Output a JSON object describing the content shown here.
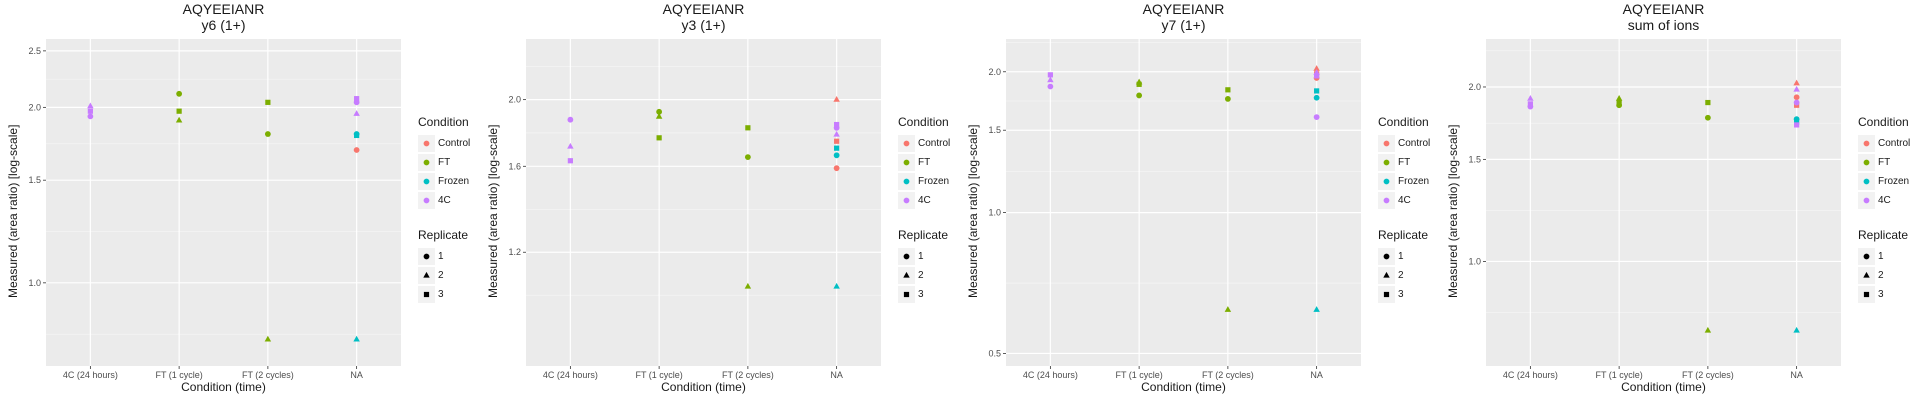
{
  "chart_data": [
    {
      "type": "scatter",
      "title": "AQYEEIANR",
      "subtitle": "y6 (1+)",
      "xlabel": "Condition (time)",
      "ylabel": "Measured (area ratio) [log-scale]",
      "yscale": "log",
      "ylim": [
        0.72,
        2.62
      ],
      "yticks": [
        1.0,
        1.5,
        2.0,
        2.5
      ],
      "yticklabels": [
        "1.0",
        "1.5",
        "2.0",
        "2.5"
      ],
      "categories": [
        "4C (24 hours)",
        "FT (1 cycle)",
        "FT (2 cycles)",
        "NA"
      ],
      "points": [
        {
          "x": "4C (24 hours)",
          "y": 1.93,
          "condition": "4C",
          "replicate": "1"
        },
        {
          "x": "4C (24 hours)",
          "y": 2.01,
          "condition": "4C",
          "replicate": "2"
        },
        {
          "x": "4C (24 hours)",
          "y": 1.97,
          "condition": "4C",
          "replicate": "3"
        },
        {
          "x": "FT (1 cycle)",
          "y": 2.11,
          "condition": "FT",
          "replicate": "1"
        },
        {
          "x": "FT (1 cycle)",
          "y": 1.9,
          "condition": "FT",
          "replicate": "2"
        },
        {
          "x": "FT (1 cycle)",
          "y": 1.97,
          "condition": "FT",
          "replicate": "3"
        },
        {
          "x": "FT (2 cycles)",
          "y": 1.8,
          "condition": "FT",
          "replicate": "1"
        },
        {
          "x": "FT (2 cycles)",
          "y": 0.8,
          "condition": "FT",
          "replicate": "2"
        },
        {
          "x": "FT (2 cycles)",
          "y": 2.04,
          "condition": "FT",
          "replicate": "3"
        },
        {
          "x": "NA",
          "y": 1.69,
          "condition": "Control",
          "replicate": "1"
        },
        {
          "x": "NA",
          "y": 1.8,
          "condition": "Frozen",
          "replicate": "1"
        },
        {
          "x": "NA",
          "y": 1.79,
          "condition": "Frozen",
          "replicate": "3"
        },
        {
          "x": "NA",
          "y": 0.8,
          "condition": "Frozen",
          "replicate": "2"
        },
        {
          "x": "NA",
          "y": 2.04,
          "condition": "4C",
          "replicate": "1"
        },
        {
          "x": "NA",
          "y": 2.07,
          "condition": "4C",
          "replicate": "3"
        },
        {
          "x": "NA",
          "y": 1.95,
          "condition": "4C",
          "replicate": "2"
        }
      ]
    },
    {
      "type": "scatter",
      "title": "AQYEEIANR",
      "subtitle": "y3 (1+)",
      "xlabel": "Condition (time)",
      "ylabel": "Measured (area ratio) [log-scale]",
      "yscale": "log",
      "ylim": [
        0.82,
        2.45
      ],
      "yticks": [
        1.2,
        1.6,
        2.0
      ],
      "yticklabels": [
        "1.2",
        "1.6",
        "2.0"
      ],
      "categories": [
        "4C (24 hours)",
        "FT (1 cycle)",
        "FT (2 cycles)",
        "NA"
      ],
      "points": [
        {
          "x": "4C (24 hours)",
          "y": 1.87,
          "condition": "4C",
          "replicate": "1"
        },
        {
          "x": "4C (24 hours)",
          "y": 1.71,
          "condition": "4C",
          "replicate": "2"
        },
        {
          "x": "4C (24 hours)",
          "y": 1.63,
          "condition": "4C",
          "replicate": "3"
        },
        {
          "x": "FT (1 cycle)",
          "y": 1.92,
          "condition": "FT",
          "replicate": "1"
        },
        {
          "x": "FT (1 cycle)",
          "y": 1.89,
          "condition": "FT",
          "replicate": "2"
        },
        {
          "x": "FT (1 cycle)",
          "y": 1.76,
          "condition": "FT",
          "replicate": "3"
        },
        {
          "x": "FT (2 cycles)",
          "y": 1.65,
          "condition": "FT",
          "replicate": "1"
        },
        {
          "x": "FT (2 cycles)",
          "y": 1.07,
          "condition": "FT",
          "replicate": "2"
        },
        {
          "x": "FT (2 cycles)",
          "y": 1.82,
          "condition": "FT",
          "replicate": "3"
        },
        {
          "x": "NA",
          "y": 1.59,
          "condition": "Control",
          "replicate": "1"
        },
        {
          "x": "NA",
          "y": 2.0,
          "condition": "Control",
          "replicate": "2"
        },
        {
          "x": "NA",
          "y": 1.74,
          "condition": "Control",
          "replicate": "3"
        },
        {
          "x": "NA",
          "y": 1.66,
          "condition": "Frozen",
          "replicate": "1"
        },
        {
          "x": "NA",
          "y": 1.07,
          "condition": "Frozen",
          "replicate": "2"
        },
        {
          "x": "NA",
          "y": 1.7,
          "condition": "Frozen",
          "replicate": "3"
        },
        {
          "x": "NA",
          "y": 1.82,
          "condition": "4C",
          "replicate": "1"
        },
        {
          "x": "NA",
          "y": 1.78,
          "condition": "4C",
          "replicate": "2"
        },
        {
          "x": "NA",
          "y": 1.84,
          "condition": "4C",
          "replicate": "3"
        }
      ]
    },
    {
      "type": "scatter",
      "title": "AQYEEIANR",
      "subtitle": "y7 (1+)",
      "xlabel": "Condition (time)",
      "ylabel": "Measured (area ratio) [log-scale]",
      "yscale": "log",
      "ylim": [
        0.47,
        2.35
      ],
      "yticks": [
        0.5,
        1.0,
        1.5,
        2.0
      ],
      "yticklabels": [
        "0.5",
        "1.0",
        "1.5",
        "2.0"
      ],
      "categories": [
        "4C (24 hours)",
        "FT (1 cycle)",
        "FT (2 cycles)",
        "NA"
      ],
      "points": [
        {
          "x": "4C (24 hours)",
          "y": 1.86,
          "condition": "4C",
          "replicate": "1"
        },
        {
          "x": "4C (24 hours)",
          "y": 1.92,
          "condition": "4C",
          "replicate": "2"
        },
        {
          "x": "4C (24 hours)",
          "y": 1.97,
          "condition": "4C",
          "replicate": "3"
        },
        {
          "x": "FT (1 cycle)",
          "y": 1.78,
          "condition": "FT",
          "replicate": "1"
        },
        {
          "x": "FT (1 cycle)",
          "y": 1.9,
          "condition": "FT",
          "replicate": "2"
        },
        {
          "x": "FT (1 cycle)",
          "y": 1.88,
          "condition": "FT",
          "replicate": "3"
        },
        {
          "x": "FT (2 cycles)",
          "y": 1.75,
          "condition": "FT",
          "replicate": "1"
        },
        {
          "x": "FT (2 cycles)",
          "y": 0.62,
          "condition": "FT",
          "replicate": "2"
        },
        {
          "x": "FT (2 cycles)",
          "y": 1.83,
          "condition": "FT",
          "replicate": "3"
        },
        {
          "x": "NA",
          "y": 1.94,
          "condition": "Control",
          "replicate": "1"
        },
        {
          "x": "NA",
          "y": 2.03,
          "condition": "Control",
          "replicate": "2"
        },
        {
          "x": "NA",
          "y": 1.98,
          "condition": "Control",
          "replicate": "3"
        },
        {
          "x": "NA",
          "y": 1.76,
          "condition": "Frozen",
          "replicate": "1"
        },
        {
          "x": "NA",
          "y": 0.62,
          "condition": "Frozen",
          "replicate": "2"
        },
        {
          "x": "NA",
          "y": 1.82,
          "condition": "Frozen",
          "replicate": "3"
        },
        {
          "x": "NA",
          "y": 1.6,
          "condition": "4C",
          "replicate": "1"
        },
        {
          "x": "NA",
          "y": 1.99,
          "condition": "4C",
          "replicate": "2"
        },
        {
          "x": "NA",
          "y": 1.96,
          "condition": "4C",
          "replicate": "3"
        }
      ]
    },
    {
      "type": "scatter",
      "title": "AQYEEIANR",
      "subtitle": "sum of ions",
      "xlabel": "Condition (time)",
      "ylabel": "Measured (area ratio) [log-scale]",
      "yscale": "log",
      "ylim": [
        0.66,
        2.42
      ],
      "yticks": [
        1.0,
        1.5,
        2.0
      ],
      "yticklabels": [
        "1.0",
        "1.5",
        "2.0"
      ],
      "categories": [
        "4C (24 hours)",
        "FT (1 cycle)",
        "FT (2 cycles)",
        "NA"
      ],
      "points": [
        {
          "x": "4C (24 hours)",
          "y": 1.85,
          "condition": "4C",
          "replicate": "1"
        },
        {
          "x": "4C (24 hours)",
          "y": 1.91,
          "condition": "4C",
          "replicate": "2"
        },
        {
          "x": "4C (24 hours)",
          "y": 1.87,
          "condition": "4C",
          "replicate": "3"
        },
        {
          "x": "FT (1 cycle)",
          "y": 1.86,
          "condition": "FT",
          "replicate": "1"
        },
        {
          "x": "FT (1 cycle)",
          "y": 1.91,
          "condition": "FT",
          "replicate": "2"
        },
        {
          "x": "FT (1 cycle)",
          "y": 1.88,
          "condition": "FT",
          "replicate": "3"
        },
        {
          "x": "FT (2 cycles)",
          "y": 1.77,
          "condition": "FT",
          "replicate": "1"
        },
        {
          "x": "FT (2 cycles)",
          "y": 0.76,
          "condition": "FT",
          "replicate": "2"
        },
        {
          "x": "FT (2 cycles)",
          "y": 1.88,
          "condition": "FT",
          "replicate": "3"
        },
        {
          "x": "NA",
          "y": 1.92,
          "condition": "Control",
          "replicate": "1"
        },
        {
          "x": "NA",
          "y": 2.03,
          "condition": "Control",
          "replicate": "2"
        },
        {
          "x": "NA",
          "y": 1.86,
          "condition": "Control",
          "replicate": "3"
        },
        {
          "x": "NA",
          "y": 1.76,
          "condition": "Frozen",
          "replicate": "1"
        },
        {
          "x": "NA",
          "y": 0.76,
          "condition": "Frozen",
          "replicate": "2"
        },
        {
          "x": "NA",
          "y": 1.74,
          "condition": "Frozen",
          "replicate": "3"
        },
        {
          "x": "NA",
          "y": 1.88,
          "condition": "4C",
          "replicate": "1"
        },
        {
          "x": "NA",
          "y": 1.98,
          "condition": "4C",
          "replicate": "2"
        },
        {
          "x": "NA",
          "y": 1.72,
          "condition": "4C",
          "replicate": "3"
        }
      ]
    }
  ],
  "legend": {
    "condition_title": "Condition",
    "conditions": [
      {
        "label": "Control",
        "color": "#F8766D"
      },
      {
        "label": "FT",
        "color": "#7CAE00"
      },
      {
        "label": "Frozen",
        "color": "#00BFC4"
      },
      {
        "label": "4C",
        "color": "#C77CFF"
      }
    ],
    "replicate_title": "Replicate",
    "replicates": [
      {
        "label": "1",
        "shape": "circle"
      },
      {
        "label": "2",
        "shape": "triangle"
      },
      {
        "label": "3",
        "shape": "square"
      }
    ]
  },
  "colors": {
    "panel_background": "#EBEBEB",
    "grid_major": "#FFFFFF",
    "legend_key_background": "#F2F2F2",
    "text": "#1A1A1A"
  }
}
